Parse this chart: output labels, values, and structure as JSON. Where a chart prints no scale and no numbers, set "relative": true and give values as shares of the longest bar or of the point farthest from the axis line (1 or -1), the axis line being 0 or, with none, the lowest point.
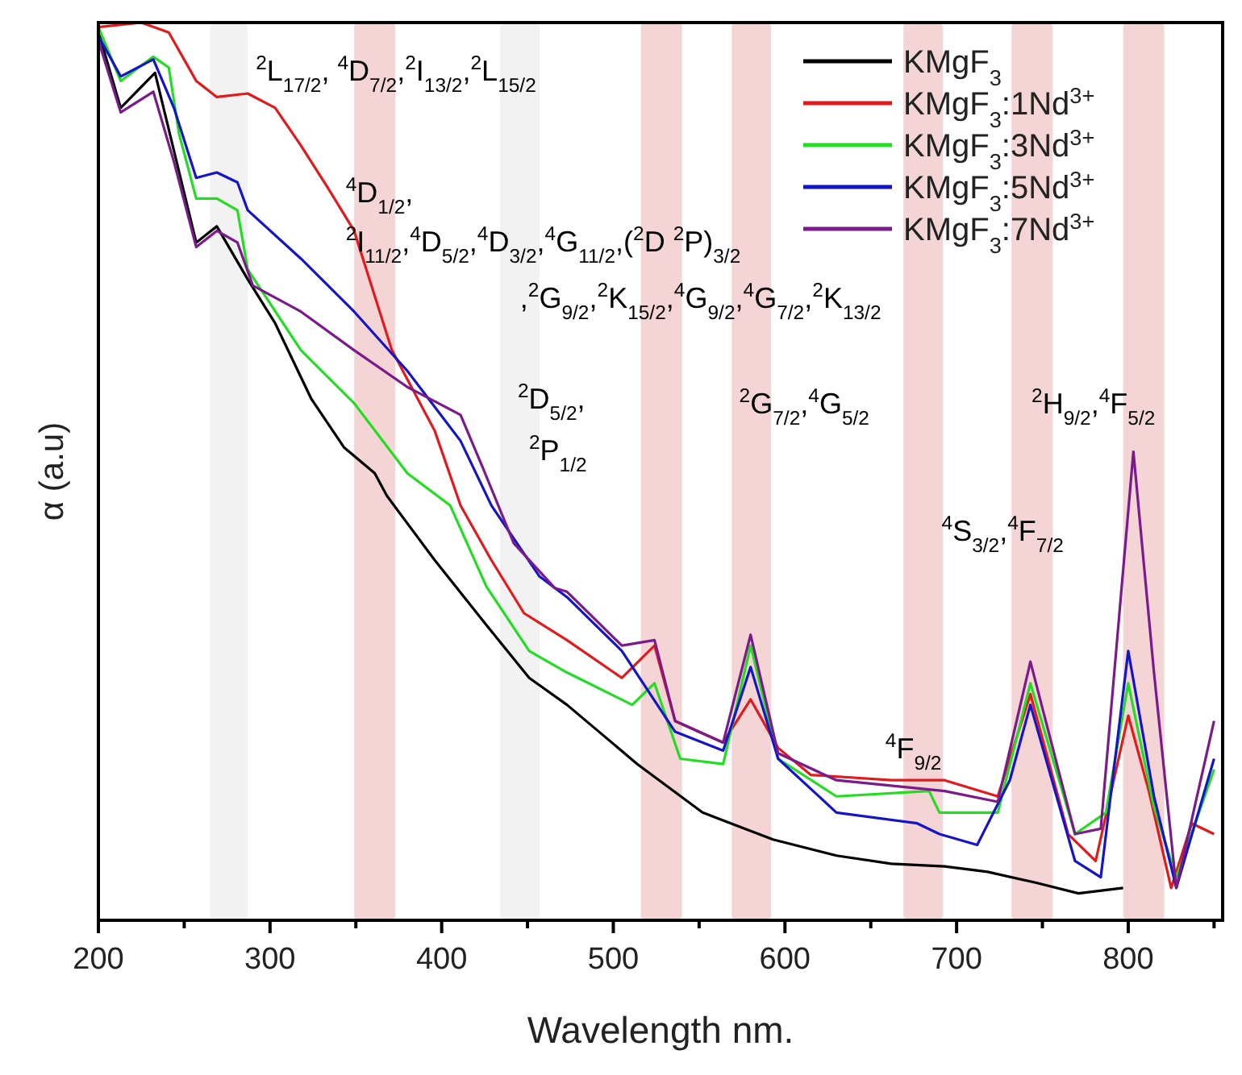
{
  "chart_data": {
    "type": "line",
    "xlabel": "Wavelength nm.",
    "ylabel": "α (a.u)",
    "relative": true,
    "legend": "top right",
    "xlim": [
      200,
      855
    ],
    "xticks": [
      200,
      {
        "value": 250,
        "label": null
      },
      300,
      {
        "value": 350,
        "label": null
      },
      400,
      {
        "value": 450,
        "label": null
      },
      500,
      {
        "value": 550,
        "label": null
      },
      600,
      {
        "value": 650,
        "label": null
      },
      700,
      {
        "value": 750,
        "label": null
      },
      800,
      {
        "value": 850,
        "label": null
      }
    ],
    "bands": [
      {
        "axis": "x",
        "from": 265,
        "to": 287,
        "color": "#f2f2f2"
      },
      {
        "axis": "x",
        "from": 349,
        "to": 373,
        "color": "#f4d4d4"
      },
      {
        "axis": "x",
        "from": 434,
        "to": 457,
        "color": "#f2f2f2"
      },
      {
        "axis": "x",
        "from": 516,
        "to": 540,
        "color": "#f4d4d4"
      },
      {
        "axis": "x",
        "from": 569,
        "to": 592,
        "color": "#f4d4d4"
      },
      {
        "axis": "x",
        "from": 669,
        "to": 692,
        "color": "#f4d4d4"
      },
      {
        "axis": "x",
        "from": 732,
        "to": 756,
        "color": "#f4d4d4"
      },
      {
        "axis": "x",
        "from": 797,
        "to": 821,
        "color": "#f4d4d4"
      }
    ],
    "annotations": [
      "$^{2}$L$_{17/2}$, $^{4}$D$_{7/2}$,$^{2}$I$_{13/2}$,$^{2}$L$_{15/2}$",
      "$^{4}$D$_{1/2}$,",
      "$^{2}$I$_{11/2}$,$^{4}$D$_{5/2}$,$^{4}$D$_{3/2}$,$^{4}$G$_{11/2}$,($^{2}$D $^{2}$P)$_{3/2}$",
      ",$^{2}$G$_{9/2}$,$^{2}$K$_{15/2}$,$^{4}$G$_{9/2}$,$^{4}$G$_{7/2}$,$^{2}$K$_{13/2}$",
      "$^{2}$D$_{5/2}$,",
      "$^{2}$P$_{1/2}$",
      "$^{2}$G$_{7/2}$,$^{4}$G$_{5/2}$",
      "$^{4}$F$_{9/2}$",
      "$^{4}$S$_{3/2}$,$^{4}$F$_{7/2}$",
      "$^{2}$H$_{9/2}$,$^{4}$F$_{5/2}$"
    ],
    "series": [
      {
        "name": "KMgF$_{3}$",
        "color": "#000000",
        "x": [
          200,
          213,
          233,
          257,
          269,
          287,
          303,
          324,
          343,
          361,
          368,
          396,
          426,
          451,
          473,
          514,
          552,
          593,
          630,
          662,
          693,
          718,
          746,
          771,
          797
        ],
        "values": [
          0.99,
          0.905,
          0.944,
          0.755,
          0.773,
          0.714,
          0.665,
          0.581,
          0.527,
          0.498,
          0.473,
          0.401,
          0.329,
          0.27,
          0.24,
          0.174,
          0.12,
          0.09,
          0.072,
          0.063,
          0.06,
          0.054,
          0.042,
          0.03,
          0.036
        ]
      },
      {
        "name": "KMgF$_{3}$:1Nd$^{3+}$",
        "color": "#e31a1c",
        "x": [
          200,
          225,
          241,
          257,
          269,
          287,
          303,
          318,
          334,
          349,
          371,
          396,
          411,
          429,
          448,
          473,
          505,
          524,
          536,
          564,
          580,
          596,
          615,
          662,
          693,
          724,
          743,
          765,
          781,
          800,
          812,
          825,
          837,
          850
        ],
        "values": [
          0.995,
          1,
          0.989,
          0.935,
          0.917,
          0.921,
          0.905,
          0.863,
          0.815,
          0.768,
          0.635,
          0.545,
          0.462,
          0.401,
          0.342,
          0.312,
          0.27,
          0.306,
          0.222,
          0.198,
          0.246,
          0.192,
          0.162,
          0.156,
          0.156,
          0.138,
          0.252,
          0.096,
          0.066,
          0.228,
          0.144,
          0.036,
          0.108,
          0.096
        ]
      },
      {
        "name": "KMgF$_{3}$:3Nd$^{3+}$",
        "color": "#22dd22",
        "x": [
          200,
          213,
          232,
          241,
          247,
          257,
          269,
          281,
          287,
          318,
          349,
          380,
          405,
          426,
          451,
          473,
          511,
          524,
          539,
          564,
          580,
          596,
          630,
          684,
          690,
          724,
          743,
          769,
          787,
          800,
          815,
          828,
          850
        ],
        "values": [
          0.995,
          0.935,
          0.962,
          0.95,
          0.876,
          0.804,
          0.804,
          0.791,
          0.725,
          0.635,
          0.576,
          0.498,
          0.462,
          0.372,
          0.3,
          0.276,
          0.24,
          0.264,
          0.18,
          0.174,
          0.306,
          0.18,
          0.138,
          0.144,
          0.12,
          0.12,
          0.264,
          0.096,
          0.12,
          0.264,
          0.126,
          0.048,
          0.168
        ]
      },
      {
        "name": "KMgF$_{3}$:5Nd$^{3+}$",
        "color": "#1414c8",
        "x": [
          200,
          213,
          232,
          244,
          257,
          269,
          281,
          287,
          318,
          349,
          380,
          411,
          429,
          457,
          473,
          505,
          536,
          564,
          580,
          596,
          630,
          677,
          690,
          712,
          731,
          743,
          769,
          784,
          800,
          815,
          828,
          850
        ],
        "values": [
          0.985,
          0.94,
          0.959,
          0.905,
          0.827,
          0.833,
          0.822,
          0.791,
          0.737,
          0.678,
          0.612,
          0.534,
          0.462,
          0.383,
          0.36,
          0.3,
          0.21,
          0.189,
          0.282,
          0.18,
          0.12,
          0.108,
          0.096,
          0.084,
          0.156,
          0.24,
          0.066,
          0.048,
          0.3,
          0.138,
          0.036,
          0.18
        ]
      },
      {
        "name": "KMgF$_{3}$:7Nd$^{3+}$",
        "color": "#7b1a8a",
        "x": [
          200,
          213,
          232,
          244,
          257,
          269,
          281,
          290,
          318,
          349,
          380,
          411,
          424,
          442,
          466,
          473,
          505,
          524,
          536,
          564,
          580,
          596,
          630,
          693,
          724,
          743,
          769,
          784,
          803,
          815,
          828,
          850
        ],
        "values": [
          0.98,
          0.9,
          0.923,
          0.845,
          0.75,
          0.768,
          0.755,
          0.707,
          0.678,
          0.635,
          0.594,
          0.563,
          0.504,
          0.42,
          0.37,
          0.366,
          0.306,
          0.312,
          0.222,
          0.198,
          0.318,
          0.186,
          0.156,
          0.144,
          0.132,
          0.288,
          0.096,
          0.102,
          0.522,
          0.276,
          0.036,
          0.222
        ]
      }
    ]
  }
}
